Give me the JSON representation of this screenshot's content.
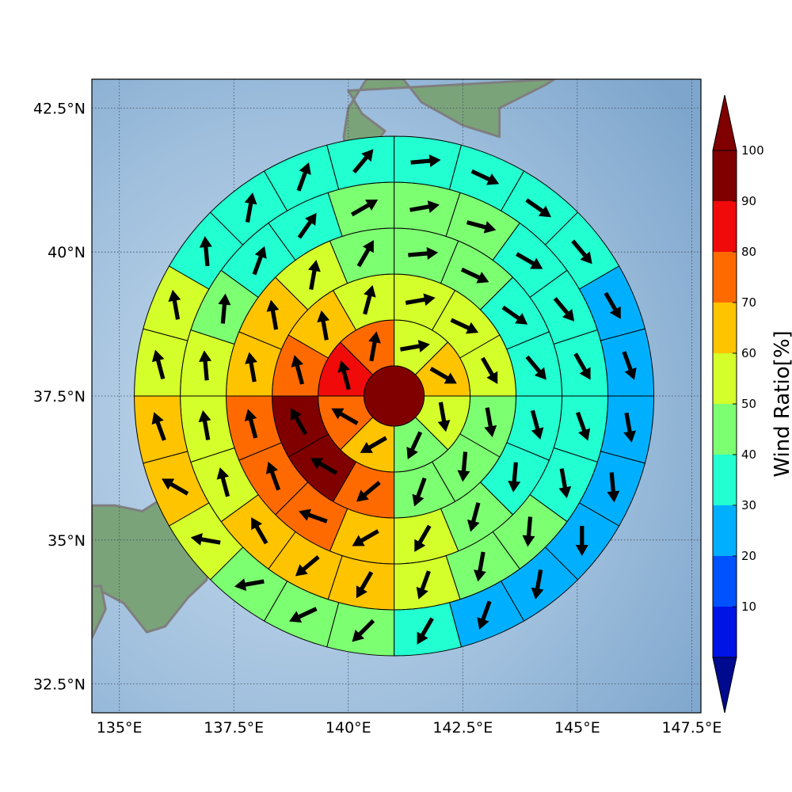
{
  "map": {
    "lon_ticks": [
      "135°E",
      "137.5°E",
      "140°E",
      "142.5°E",
      "145°E",
      "147.5°E"
    ],
    "lat_ticks": [
      "42.5°N",
      "40°N",
      "37.5°N",
      "35°N",
      "32.5°N"
    ],
    "lon_range": [
      134.4,
      147.7
    ],
    "lat_range": [
      32.0,
      43.0
    ],
    "ocean_color": "#8fb4d6",
    "land_color": "#7ba37a",
    "coast_color": "#7f7f7f"
  },
  "colorbar": {
    "label": "Wind Ratio[%]",
    "ticks": [
      "100",
      "90",
      "80",
      "70",
      "60",
      "50",
      "40",
      "30",
      "20",
      "10"
    ],
    "levels": [
      0,
      10,
      20,
      30,
      40,
      50,
      60,
      70,
      80,
      90,
      100
    ],
    "colors": [
      "#000a8f",
      "#0014e6",
      "#0052ff",
      "#00b0ff",
      "#22ffd0",
      "#7dff72",
      "#d4ff2a",
      "#ffc400",
      "#ff6a00",
      "#f00a0a",
      "#800000"
    ],
    "extend": "both"
  },
  "chart_data": {
    "type": "polar-grid-wind",
    "center": {
      "lon": 141.0,
      "lat": 37.5
    },
    "center_value": 100,
    "rings": [
      {
        "sectors": 8,
        "values": [
          55,
          60,
          55,
          45,
          65,
          70,
          80,
          75
        ],
        "dir_deg": [
          80,
          120,
          170,
          205,
          240,
          300,
          345,
          10
        ]
      },
      {
        "sectors": 12,
        "values": [
          55,
          50,
          50,
          45,
          45,
          45,
          70,
          90,
          90,
          75,
          65,
          55
        ],
        "dir_deg": [
          80,
          115,
          150,
          170,
          185,
          200,
          230,
          300,
          330,
          345,
          350,
          15
        ]
      },
      {
        "sectors": 16,
        "values": [
          45,
          45,
          35,
          35,
          35,
          35,
          45,
          55,
          65,
          75,
          75,
          70,
          60,
          60,
          55,
          45
        ],
        "dir_deg": [
          85,
          115,
          125,
          140,
          165,
          185,
          195,
          210,
          240,
          290,
          340,
          345,
          350,
          350,
          10,
          30
        ]
      },
      {
        "sectors": 20,
        "values": [
          45,
          45,
          35,
          30,
          30,
          35,
          35,
          40,
          45,
          50,
          60,
          65,
          65,
          55,
          55,
          50,
          40,
          35,
          35,
          45
        ],
        "dir_deg": [
          80,
          105,
          120,
          140,
          150,
          160,
          170,
          185,
          190,
          200,
          210,
          230,
          330,
          345,
          350,
          355,
          5,
          20,
          35,
          60
        ]
      },
      {
        "sectors": 24,
        "values": [
          35,
          30,
          35,
          30,
          25,
          25,
          25,
          20,
          20,
          20,
          25,
          35,
          40,
          40,
          45,
          55,
          60,
          60,
          55,
          50,
          35,
          35,
          35,
          35
        ],
        "dir_deg": [
          85,
          115,
          125,
          140,
          150,
          160,
          170,
          175,
          180,
          190,
          200,
          210,
          225,
          245,
          260,
          280,
          300,
          340,
          345,
          350,
          355,
          10,
          20,
          40
        ]
      }
    ]
  }
}
